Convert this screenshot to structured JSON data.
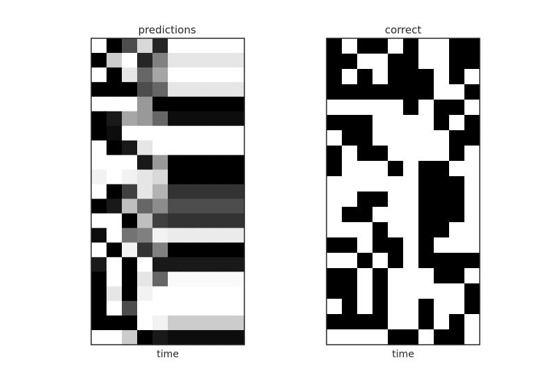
{
  "chart_data": [
    {
      "type": "heatmap",
      "title": "predictions",
      "xlabel": "time",
      "ylabel": "",
      "colormap": "grayscale",
      "value_range": [
        0,
        1
      ],
      "value_meaning": "0 = white, 1 = black",
      "grid": false,
      "values": [
        [
          0.0,
          1.0,
          0.7,
          0.15,
          0.85,
          0.0,
          0.0,
          0.0,
          0.0,
          0.0
        ],
        [
          1.0,
          0.2,
          0.0,
          0.85,
          0.5,
          0.1,
          0.1,
          0.1,
          0.1,
          0.1
        ],
        [
          0.0,
          1.0,
          0.1,
          0.6,
          0.35,
          0.0,
          0.0,
          0.0,
          0.0,
          0.0
        ],
        [
          1.0,
          1.0,
          1.0,
          0.7,
          0.6,
          0.1,
          0.1,
          0.1,
          0.1,
          0.1
        ],
        [
          0.0,
          0.0,
          0.0,
          0.4,
          1.0,
          1.0,
          1.0,
          1.0,
          1.0,
          1.0
        ],
        [
          1.0,
          0.9,
          0.35,
          0.4,
          0.6,
          0.95,
          0.95,
          0.95,
          0.95,
          0.95
        ],
        [
          1.0,
          0.95,
          0.0,
          0.0,
          0.0,
          0.0,
          0.0,
          0.0,
          0.0,
          0.0
        ],
        [
          0.0,
          1.0,
          0.9,
          0.1,
          0.0,
          0.0,
          0.0,
          0.0,
          0.0,
          0.0
        ],
        [
          0.0,
          0.0,
          0.0,
          0.9,
          0.4,
          1.0,
          1.0,
          1.0,
          1.0,
          1.0
        ],
        [
          0.05,
          0.0,
          0.05,
          0.1,
          0.15,
          1.0,
          1.0,
          1.0,
          1.0,
          1.0
        ],
        [
          0.0,
          1.0,
          0.75,
          0.1,
          0.3,
          0.8,
          0.8,
          0.8,
          0.8,
          0.8
        ],
        [
          1.0,
          0.9,
          0.25,
          0.6,
          0.45,
          0.7,
          0.7,
          0.7,
          0.7,
          0.7
        ],
        [
          0.0,
          0.0,
          1.0,
          0.25,
          0.75,
          0.8,
          0.8,
          0.8,
          0.8,
          0.8
        ],
        [
          0.95,
          0.0,
          0.55,
          0.5,
          0.05,
          0.08,
          0.08,
          0.08,
          0.08,
          0.08
        ],
        [
          0.0,
          1.0,
          0.05,
          0.8,
          0.5,
          1.0,
          1.0,
          1.0,
          1.0,
          1.0
        ],
        [
          0.9,
          0.0,
          1.0,
          0.0,
          0.9,
          0.9,
          0.9,
          0.9,
          0.9,
          0.9
        ],
        [
          1.0,
          0.0,
          1.0,
          0.1,
          0.6,
          0.02,
          0.02,
          0.02,
          0.02,
          0.02
        ],
        [
          1.0,
          0.1,
          1.0,
          0.05,
          0.0,
          0.0,
          0.0,
          0.0,
          0.0,
          0.0
        ],
        [
          1.0,
          0.0,
          0.7,
          0.0,
          0.0,
          0.0,
          0.0,
          0.0,
          0.0,
          0.0
        ],
        [
          1.0,
          1.0,
          1.0,
          0.0,
          0.05,
          0.2,
          0.2,
          0.2,
          0.2,
          0.2
        ],
        [
          0.0,
          0.0,
          0.2,
          1.0,
          0.9,
          0.95,
          0.95,
          0.95,
          0.95,
          0.95
        ]
      ]
    },
    {
      "type": "heatmap",
      "title": "correct",
      "xlabel": "time",
      "ylabel": "",
      "colormap": "grayscale",
      "value_range": [
        0,
        1
      ],
      "value_meaning": "0 = white, 1 = black",
      "grid": false,
      "values": [
        [
          1,
          0,
          1,
          1,
          0,
          1,
          0,
          0,
          1,
          1
        ],
        [
          1,
          1,
          0,
          0,
          1,
          1,
          0,
          0,
          1,
          1
        ],
        [
          1,
          0,
          1,
          0,
          1,
          1,
          1,
          0,
          1,
          0
        ],
        [
          1,
          1,
          1,
          1,
          1,
          1,
          1,
          0,
          0,
          1
        ],
        [
          0,
          0,
          0,
          0,
          0,
          1,
          0,
          1,
          1,
          0
        ],
        [
          1,
          1,
          1,
          0,
          0,
          0,
          0,
          1,
          0,
          1
        ],
        [
          0,
          1,
          1,
          0,
          0,
          0,
          0,
          0,
          1,
          1
        ],
        [
          1,
          0,
          1,
          1,
          0,
          0,
          0,
          0,
          1,
          0
        ],
        [
          1,
          0,
          0,
          0,
          1,
          0,
          1,
          1,
          0,
          0
        ],
        [
          0,
          0,
          0,
          0,
          0,
          0,
          1,
          1,
          1,
          0
        ],
        [
          0,
          0,
          1,
          1,
          0,
          0,
          1,
          1,
          1,
          0
        ],
        [
          0,
          1,
          1,
          0,
          0,
          0,
          1,
          1,
          1,
          0
        ],
        [
          0,
          0,
          0,
          1,
          0,
          0,
          1,
          1,
          0,
          0
        ],
        [
          1,
          1,
          0,
          1,
          1,
          0,
          1,
          0,
          0,
          0
        ],
        [
          0,
          0,
          1,
          0,
          1,
          0,
          1,
          1,
          1,
          1
        ],
        [
          1,
          1,
          0,
          1,
          0,
          0,
          0,
          1,
          1,
          0
        ],
        [
          1,
          1,
          0,
          1,
          0,
          0,
          0,
          0,
          0,
          1
        ],
        [
          0,
          1,
          0,
          1,
          0,
          0,
          1,
          0,
          0,
          1
        ],
        [
          1,
          1,
          1,
          1,
          0,
          0,
          1,
          0,
          1,
          0
        ],
        [
          0,
          0,
          0,
          0,
          1,
          1,
          0,
          1,
          1,
          0
        ]
      ]
    }
  ]
}
